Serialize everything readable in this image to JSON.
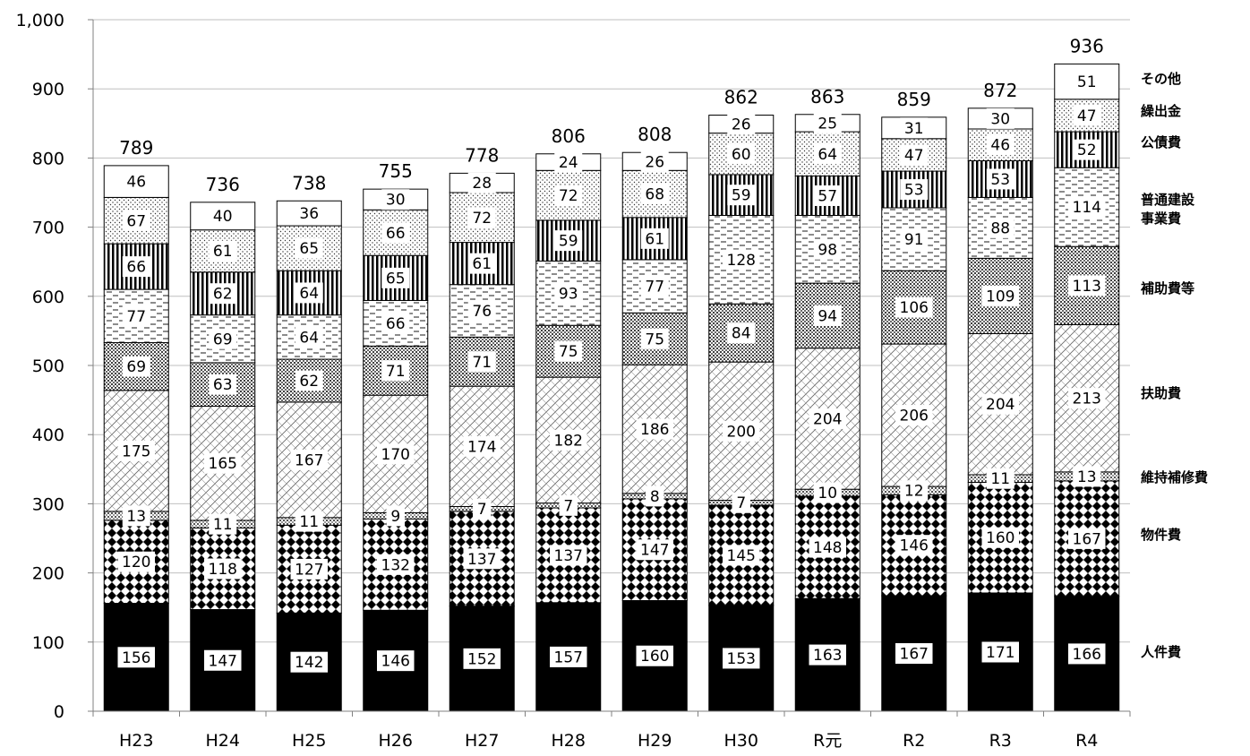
{
  "chart_data": {
    "type": "bar",
    "stacked": true,
    "ylim": [
      0,
      1000
    ],
    "yticks": [
      0,
      100,
      200,
      300,
      400,
      500,
      600,
      700,
      800,
      900,
      1000
    ],
    "ytick_labels": [
      "0",
      "100",
      "200",
      "300",
      "400",
      "500",
      "600",
      "700",
      "800",
      "900",
      "1,000"
    ],
    "grid": true,
    "categories": [
      "H23",
      "H24",
      "H25",
      "H26",
      "H27",
      "H28",
      "H29",
      "H30",
      "R元",
      "R2",
      "R3",
      "R4"
    ],
    "totals": [
      789,
      736,
      738,
      755,
      778,
      806,
      808,
      862,
      863,
      859,
      872,
      936
    ],
    "series": [
      {
        "name": "人件費",
        "values": [
          156,
          147,
          142,
          146,
          152,
          157,
          160,
          153,
          163,
          167,
          171,
          166
        ],
        "pattern": "solid-black"
      },
      {
        "name": "物件費",
        "values": [
          120,
          118,
          127,
          132,
          137,
          137,
          147,
          145,
          148,
          146,
          160,
          167
        ],
        "pattern": "diamond"
      },
      {
        "name": "維持補修費",
        "values": [
          13,
          11,
          11,
          9,
          7,
          7,
          8,
          7,
          10,
          12,
          11,
          13
        ],
        "pattern": "grid"
      },
      {
        "name": "扶助費",
        "values": [
          175,
          165,
          167,
          170,
          174,
          182,
          186,
          200,
          204,
          206,
          204,
          213
        ],
        "pattern": "crosshatch"
      },
      {
        "name": "補助費等",
        "values": [
          69,
          63,
          62,
          71,
          71,
          75,
          75,
          84,
          94,
          106,
          109,
          113
        ],
        "pattern": "dense-dots"
      },
      {
        "name": "普通建設\n事業費",
        "values": [
          77,
          69,
          64,
          66,
          76,
          93,
          77,
          128,
          98,
          91,
          88,
          114
        ],
        "pattern": "dashes"
      },
      {
        "name": "公債費",
        "values": [
          66,
          62,
          64,
          65,
          61,
          59,
          61,
          59,
          57,
          53,
          53,
          52
        ],
        "pattern": "vertical-stripes"
      },
      {
        "name": "繰出金",
        "values": [
          67,
          61,
          65,
          66,
          72,
          72,
          68,
          60,
          64,
          47,
          46,
          47
        ],
        "pattern": "light-dots"
      },
      {
        "name": "その他",
        "values": [
          46,
          40,
          36,
          30,
          28,
          24,
          26,
          26,
          25,
          31,
          30,
          51
        ],
        "pattern": "white"
      }
    ],
    "legend_position": "right"
  }
}
